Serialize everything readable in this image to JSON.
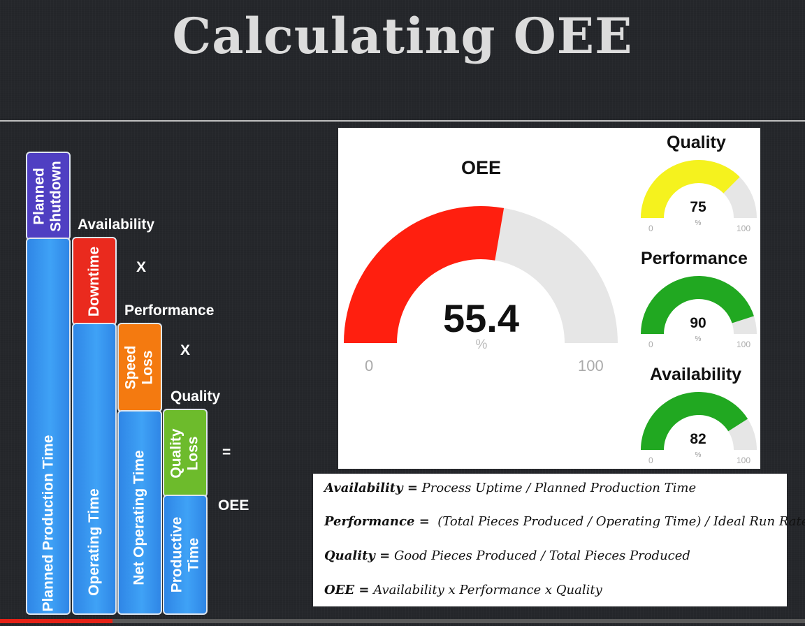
{
  "title": "Calculating OEE",
  "diagram": {
    "bars": {
      "planned_shutdown": "Planned\nShutdown",
      "planned_production_time": "Planned Production Time",
      "downtime": "Downtime",
      "operating_time": "Operating Time",
      "speed_loss": "Speed\nLoss",
      "net_operating_time": "Net Operating Time",
      "quality_loss": "Quality\nLoss",
      "productive_time": "Productive\nTime"
    },
    "labels": {
      "availability": "Availability",
      "performance": "Performance",
      "quality": "Quality",
      "oee": "OEE"
    },
    "operators": {
      "multiply1": "X",
      "multiply2": "X",
      "equals": "="
    },
    "colors": {
      "blue": "#3a96f0",
      "purple": "#4f3fc2",
      "red": "#ea2a1e",
      "orange": "#f47a10",
      "green": "#6dbb2c"
    }
  },
  "gauges": {
    "oee": {
      "title": "OEE",
      "value": 55.4,
      "value_text": "55.4",
      "unit": "%",
      "min": "0",
      "max": "100",
      "color": "#ff1f0f"
    },
    "quality": {
      "title": "Quality",
      "value": 75,
      "value_text": "75",
      "unit": "%",
      "min": "0",
      "max": "100",
      "color": "#f5f21e"
    },
    "performance": {
      "title": "Performance",
      "value": 90,
      "value_text": "90",
      "unit": "%",
      "min": "0",
      "max": "100",
      "color": "#21a821"
    },
    "availability": {
      "title": "Availability",
      "value": 82,
      "value_text": "82",
      "unit": "%",
      "min": "0",
      "max": "100",
      "color": "#21a821"
    }
  },
  "formulas": [
    {
      "term": "Availability =",
      "expr": " Process Uptime / Planned Production Time"
    },
    {
      "term": "Performance =",
      "expr": "  (Total Pieces Produced / Operating Time) / Ideal Run Rate"
    },
    {
      "term": "Quality =",
      "expr": " Good Pieces Produced / Total Pieces Produced"
    },
    {
      "term": "OEE =",
      "expr": " Availability x Performance x Quality"
    }
  ],
  "video_progress": 0.14
}
